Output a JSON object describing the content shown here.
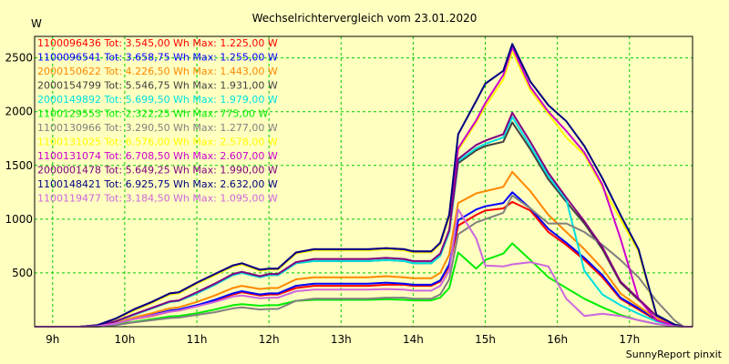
{
  "chart_data": {
    "type": "line",
    "title": "Wechselrichtervergleich vom 23.01.2020",
    "ylabel": "W",
    "footer": "SunnyReport pinxit",
    "x_tick_labels": [
      "9h",
      "10h",
      "11h",
      "12h",
      "13h",
      "14h",
      "15h",
      "16h",
      "17h"
    ],
    "x_ticks": [
      9,
      10,
      11,
      12,
      13,
      14,
      15,
      16,
      17
    ],
    "y_ticks": [
      500,
      1000,
      1500,
      2000,
      2500
    ],
    "xlim": [
      8.75,
      17.875
    ],
    "ylim": [
      0,
      2700
    ],
    "grid": true,
    "legend_position": "top-left",
    "colors": {
      "background": "#ffffc0",
      "grid": "#00cc00",
      "axis": "#000000"
    },
    "x": [
      8.75,
      9.125,
      9.375,
      9.625,
      9.875,
      10.125,
      10.375,
      10.625,
      10.75,
      11.0,
      11.25,
      11.5,
      11.625,
      11.875,
      12.0,
      12.125,
      12.375,
      12.625,
      12.875,
      13.125,
      13.375,
      13.625,
      13.875,
      14.0,
      14.25,
      14.375,
      14.5,
      14.625,
      14.875,
      15.0,
      15.25,
      15.375,
      15.625,
      15.875,
      16.125,
      16.375,
      16.625,
      16.875,
      17.125,
      17.375,
      17.625,
      17.75,
      17.875
    ],
    "series": [
      {
        "label": "1100096436 Tot: 3.545,00 Wh Max: 1.225,00 W",
        "color": "#ff0000",
        "values": [
          0,
          0,
          0,
          5,
          25,
          70,
          100,
          140,
          150,
          190,
          240,
          300,
          320,
          290,
          300,
          300,
          360,
          380,
          380,
          380,
          380,
          390,
          390,
          380,
          380,
          420,
          560,
          940,
          1040,
          1080,
          1100,
          1160,
          1080,
          880,
          760,
          620,
          460,
          260,
          160,
          60,
          10,
          0,
          0
        ]
      },
      {
        "label": "1100096541 Tot: 3.658,75 Wh Max: 1.255,00 W",
        "color": "#0000ff",
        "values": [
          0,
          0,
          0,
          5,
          30,
          75,
          110,
          150,
          160,
          200,
          250,
          310,
          330,
          300,
          310,
          310,
          380,
          400,
          400,
          400,
          400,
          410,
          400,
          390,
          390,
          430,
          580,
          990,
          1090,
          1120,
          1150,
          1250,
          1100,
          910,
          780,
          640,
          480,
          270,
          170,
          70,
          15,
          0,
          0
        ]
      },
      {
        "label": "2000150622 Tot: 4.226,50 Wh Max: 1.443,00 W",
        "color": "#ff8800",
        "values": [
          0,
          0,
          0,
          5,
          35,
          85,
          125,
          170,
          180,
          230,
          290,
          360,
          380,
          350,
          360,
          360,
          440,
          460,
          460,
          460,
          460,
          470,
          460,
          450,
          450,
          500,
          670,
          1150,
          1240,
          1260,
          1300,
          1440,
          1260,
          1040,
          880,
          720,
          540,
          310,
          190,
          75,
          15,
          0,
          0
        ]
      },
      {
        "label": "2000154799 Tot: 5.546,75 Wh Max: 1.931,00 W",
        "color": "#404040",
        "values": [
          0,
          0,
          0,
          10,
          50,
          110,
          170,
          230,
          240,
          310,
          390,
          480,
          500,
          460,
          480,
          480,
          590,
          610,
          610,
          610,
          610,
          620,
          610,
          590,
          590,
          660,
          880,
          1520,
          1640,
          1680,
          1720,
          1900,
          1650,
          1370,
          1160,
          960,
          720,
          410,
          250,
          100,
          20,
          0,
          0
        ]
      },
      {
        "label": "2000149892 Tot: 5.699,50 Wh Max: 1.979,00 W",
        "color": "#00e0e0",
        "values": [
          0,
          0,
          0,
          10,
          50,
          110,
          170,
          230,
          240,
          310,
          390,
          480,
          500,
          460,
          480,
          480,
          590,
          610,
          610,
          610,
          610,
          620,
          610,
          590,
          590,
          660,
          880,
          1540,
          1660,
          1700,
          1760,
          1950,
          1680,
          1400,
          1180,
          520,
          300,
          200,
          120,
          50,
          10,
          0,
          0
        ]
      },
      {
        "label": "1100129553 Tot: 2.322,25 Wh Max: 775,00 W",
        "color": "#00ee00",
        "values": [
          0,
          0,
          0,
          0,
          20,
          45,
          70,
          95,
          100,
          125,
          160,
          200,
          210,
          195,
          200,
          200,
          240,
          250,
          250,
          250,
          250,
          255,
          250,
          245,
          245,
          270,
          360,
          690,
          540,
          620,
          680,
          775,
          620,
          460,
          360,
          260,
          180,
          110,
          60,
          25,
          5,
          0,
          0
        ]
      },
      {
        "label": "1100130966 Tot: 3.290,50 Wh Max: 1.277,00 W",
        "color": "#808080",
        "values": [
          0,
          0,
          0,
          0,
          15,
          40,
          60,
          80,
          85,
          110,
          135,
          170,
          180,
          160,
          165,
          165,
          240,
          260,
          260,
          260,
          260,
          270,
          270,
          260,
          260,
          300,
          440,
          860,
          970,
          1000,
          1060,
          1220,
          1100,
          960,
          960,
          880,
          760,
          620,
          460,
          240,
          60,
          0,
          0
        ]
      },
      {
        "label": "1100131025 Tot: 6.576,00 Wh Max: 2.578,00 W",
        "color": "#ffff00",
        "values": [
          0,
          0,
          0,
          15,
          70,
          150,
          220,
          300,
          310,
          400,
          480,
          560,
          580,
          520,
          530,
          530,
          680,
          710,
          710,
          710,
          710,
          720,
          710,
          690,
          690,
          770,
          1020,
          1640,
          1900,
          2050,
          2300,
          2560,
          2200,
          1980,
          1760,
          1600,
          1300,
          1000,
          700,
          100,
          20,
          0,
          0
        ]
      },
      {
        "label": "1100131074 Tot: 6.708,50 Wh Max: 2.607,00 W",
        "color": "#cc00cc",
        "values": [
          0,
          0,
          0,
          15,
          75,
          160,
          230,
          310,
          320,
          410,
          490,
          570,
          590,
          530,
          540,
          540,
          690,
          720,
          720,
          720,
          720,
          730,
          720,
          700,
          700,
          780,
          1040,
          1660,
          1920,
          2080,
          2340,
          2600,
          2230,
          2000,
          1820,
          1620,
          1320,
          820,
          260,
          60,
          10,
          0,
          0
        ]
      },
      {
        "label": "2000001478 Tot: 5.649,25 Wh Max: 1.990,00 W",
        "color": "#800080",
        "values": [
          0,
          0,
          0,
          10,
          50,
          115,
          175,
          235,
          245,
          320,
          400,
          490,
          510,
          470,
          490,
          490,
          600,
          630,
          630,
          630,
          630,
          640,
          630,
          610,
          610,
          680,
          900,
          1560,
          1690,
          1730,
          1790,
          1990,
          1720,
          1430,
          1200,
          980,
          740,
          420,
          260,
          100,
          20,
          0,
          0
        ]
      },
      {
        "label": "1100148421 Tot: 6.925,75 Wh Max: 2.632,00 W",
        "color": "#000080",
        "values": [
          0,
          0,
          0,
          15,
          75,
          160,
          230,
          310,
          320,
          410,
          490,
          570,
          590,
          530,
          540,
          540,
          690,
          720,
          720,
          720,
          720,
          730,
          720,
          700,
          700,
          780,
          1040,
          1790,
          2100,
          2260,
          2380,
          2630,
          2280,
          2060,
          1910,
          1680,
          1380,
          1040,
          720,
          110,
          20,
          0,
          0
        ]
      },
      {
        "label": "1100119477 Tot: 3.184,50 Wh Max: 1.095,00 W",
        "color": "#cc66dd",
        "values": [
          0,
          0,
          0,
          5,
          30,
          70,
          105,
          140,
          150,
          190,
          230,
          280,
          290,
          265,
          270,
          270,
          330,
          345,
          345,
          345,
          345,
          350,
          345,
          335,
          335,
          380,
          520,
          1090,
          820,
          570,
          560,
          580,
          600,
          560,
          260,
          100,
          120,
          100,
          60,
          25,
          5,
          0,
          0
        ]
      }
    ]
  }
}
